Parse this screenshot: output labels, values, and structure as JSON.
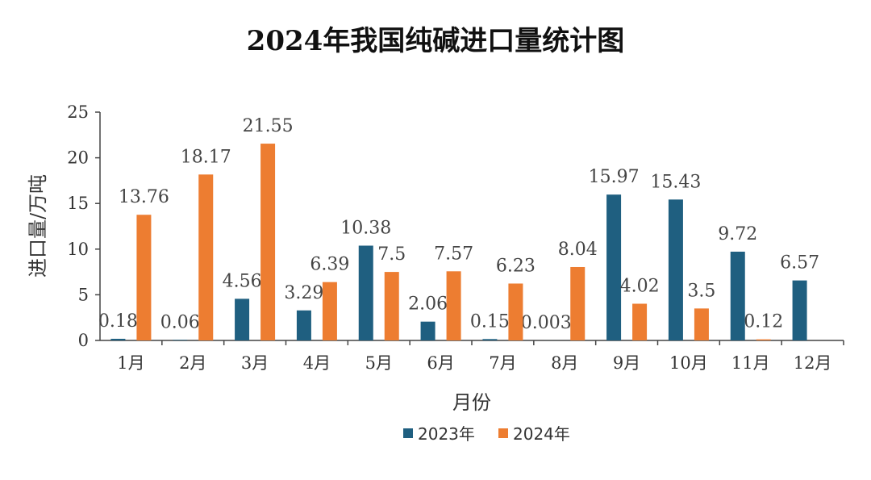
{
  "chart_data": {
    "type": "bar",
    "title": "2024年我国纯碱进口量统计图",
    "xlabel": "月份",
    "ylabel": "进口量/万吨",
    "ylim": [
      0,
      25
    ],
    "yticks": [
      0,
      5,
      10,
      15,
      20,
      25
    ],
    "categories": [
      "1月",
      "2月",
      "3月",
      "4月",
      "5月",
      "6月",
      "7月",
      "8月",
      "9月",
      "10月",
      "11月",
      "12月"
    ],
    "series": [
      {
        "name": "2023年",
        "color": "#1f5f80",
        "values": [
          0.18,
          0.06,
          4.56,
          3.29,
          10.38,
          2.06,
          0.15,
          0.0038,
          15.97,
          15.43,
          9.72,
          6.57
        ],
        "labels": [
          "0.18",
          "0.06",
          "4.56",
          "3.29",
          "10.38",
          "2.06",
          "0.15",
          "0.0038",
          "15.97",
          "15.43",
          "9.72",
          "6.57"
        ]
      },
      {
        "name": "2024年",
        "color": "#ed7d31",
        "values": [
          13.76,
          18.17,
          21.55,
          6.39,
          7.5,
          7.57,
          6.23,
          8.04,
          4.02,
          3.5,
          0.12,
          null
        ],
        "labels": [
          "13.76",
          "18.17",
          "21.55",
          "6.39",
          "7.5",
          "7.57",
          "6.23",
          "8.04",
          "4.02",
          "3.5",
          "0.12",
          null
        ]
      }
    ],
    "legend": "bottom",
    "grid": false
  }
}
